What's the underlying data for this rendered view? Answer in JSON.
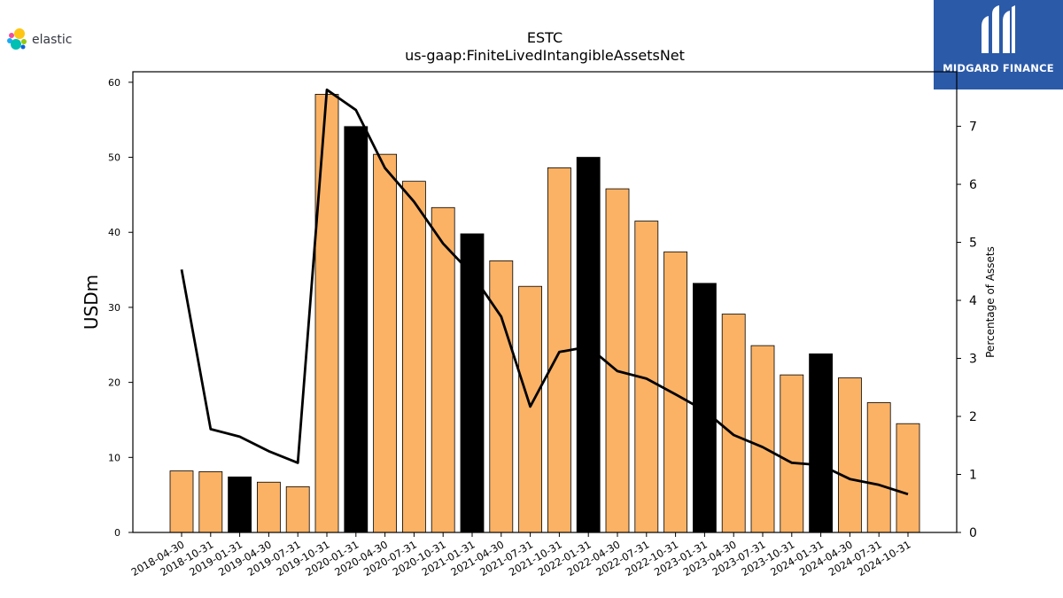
{
  "logos": {
    "left_text": "elastic",
    "right_text": "MIDGARD FINANCE"
  },
  "colors": {
    "bar_fill": "#fbb265",
    "bar_highlight": "#000000",
    "line": "#000000",
    "right_logo_bg": "#2b5aa8"
  },
  "chart_data": {
    "type": "bar",
    "title": "ESTC",
    "subtitle": "us-gaap:FiniteLivedIntangibleAssetsNet",
    "ylabel": "USDm",
    "y2label": "Percentage of Assets",
    "ylim": [
      0,
      61.4
    ],
    "y2lim": [
      0,
      7.94
    ],
    "yticks": [
      0,
      10,
      20,
      30,
      40,
      50,
      60
    ],
    "y2ticks": [
      0,
      1,
      2,
      3,
      4,
      5,
      6,
      7
    ],
    "categories": [
      "2018-04-30",
      "2018-10-31",
      "2019-01-31",
      "2019-04-30",
      "2019-07-31",
      "2019-10-31",
      "2020-01-31",
      "2020-04-30",
      "2020-07-31",
      "2020-10-31",
      "2021-01-31",
      "2021-04-30",
      "2021-07-31",
      "2021-10-31",
      "2022-01-31",
      "2022-04-30",
      "2022-07-31",
      "2022-10-31",
      "2023-01-31",
      "2023-04-30",
      "2023-07-31",
      "2023-10-31",
      "2024-01-31",
      "2024-04-30",
      "2024-07-31",
      "2024-10-31"
    ],
    "series": [
      {
        "kind": "bar",
        "axis": "left",
        "values": [
          8.2,
          8.1,
          7.4,
          6.7,
          6.1,
          58.4,
          54.1,
          50.4,
          46.8,
          43.3,
          39.8,
          36.2,
          32.8,
          48.6,
          50.0,
          45.8,
          41.5,
          37.4,
          33.2,
          29.1,
          24.9,
          21.0,
          23.8,
          20.6,
          17.3,
          14.5
        ],
        "highlight": [
          false,
          false,
          true,
          false,
          false,
          false,
          true,
          false,
          false,
          false,
          true,
          false,
          false,
          false,
          true,
          false,
          false,
          false,
          true,
          false,
          false,
          false,
          true,
          false,
          false,
          false
        ]
      },
      {
        "kind": "line",
        "axis": "right",
        "values": [
          4.53,
          1.78,
          1.65,
          1.4,
          1.2,
          7.63,
          7.28,
          6.28,
          5.7,
          4.98,
          4.45,
          3.72,
          2.17,
          3.11,
          3.2,
          2.78,
          2.65,
          2.38,
          2.1,
          1.68,
          1.47,
          1.2,
          1.16,
          0.92,
          0.82,
          0.66
        ]
      }
    ]
  }
}
